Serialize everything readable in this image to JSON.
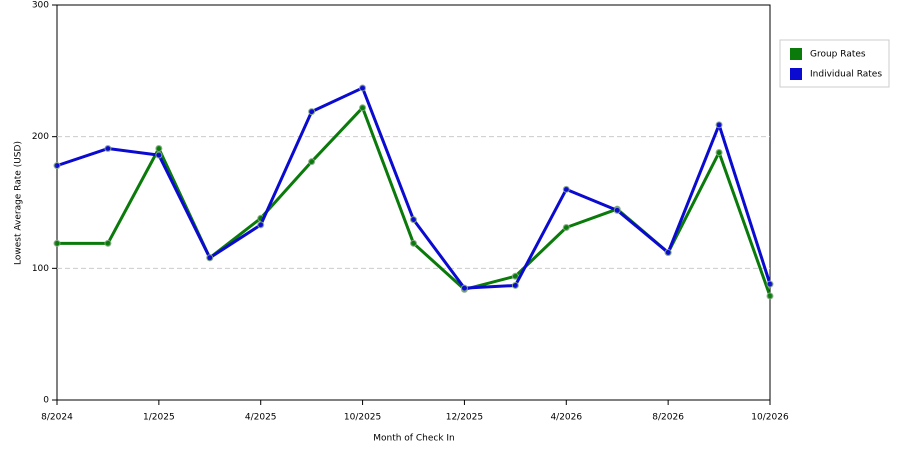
{
  "chart_data": {
    "type": "line",
    "x_label": "Month of Check In",
    "y_label": "Lowest Average Rate (USD)",
    "categories": [
      "8/2024",
      null,
      "1/2025",
      null,
      "4/2025",
      null,
      "10/2025",
      null,
      "12/2025",
      null,
      "4/2026",
      null,
      "8/2026",
      null,
      "10/2026"
    ],
    "series": [
      {
        "name": "Group Rates",
        "color": "#0a7a0a",
        "values": [
          119,
          119,
          191,
          108,
          138,
          181,
          222,
          119,
          84,
          94,
          131,
          145,
          112,
          188,
          79
        ]
      },
      {
        "name": "Individual Rates",
        "color": "#0a0ad0",
        "values": [
          178,
          191,
          186,
          108,
          133,
          219,
          237,
          137,
          85,
          87,
          160,
          144,
          112,
          209,
          88
        ]
      }
    ],
    "ylim": [
      0,
      300
    ],
    "yticks": [
      0,
      100,
      200,
      300
    ],
    "grid": true,
    "legend": "right"
  }
}
